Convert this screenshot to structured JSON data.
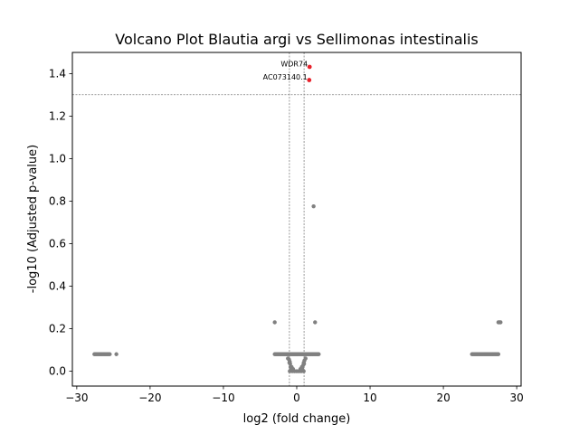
{
  "chart_data": {
    "type": "scatter",
    "title": "Volcano Plot Blautia argi vs Sellimonas intestinalis",
    "xlabel": "log2 (fold change)",
    "ylabel": "-log10 (Adjusted p-value)",
    "xlim": [
      -30.6,
      30.6
    ],
    "ylim": [
      -0.07,
      1.5
    ],
    "xticks": [
      -30,
      -20,
      -10,
      0,
      10,
      20,
      30
    ],
    "yticks": [
      0.0,
      0.2,
      0.4,
      0.6,
      0.8,
      1.0,
      1.2,
      1.4
    ],
    "thresholds": {
      "hline": 1.301,
      "vlines": [
        -1,
        1
      ]
    },
    "grid": false,
    "colors": {
      "significant": "#e8202a",
      "not_significant": "#808080",
      "threshold": "#808080"
    },
    "significant_points": [
      {
        "x": 1.75,
        "y": 1.432,
        "label": "WDR74"
      },
      {
        "x": 1.7,
        "y": 1.37,
        "label": "AC073140.1"
      }
    ],
    "nonsignificant_points": [
      [
        2.3,
        0.776
      ],
      [
        -3.0,
        0.23
      ],
      [
        2.5,
        0.23
      ],
      [
        27.5,
        0.23
      ],
      [
        27.8,
        0.23
      ],
      [
        27.65,
        0.23
      ],
      [
        -24.6,
        0.08
      ],
      [
        -1.2,
        0.06
      ],
      [
        -1.05,
        0.055
      ],
      [
        -0.95,
        0.045
      ],
      [
        -0.9,
        0.035
      ],
      [
        -0.85,
        0.02
      ],
      [
        -0.8,
        0.01
      ],
      [
        1.2,
        0.06
      ],
      [
        1.05,
        0.05
      ],
      [
        0.95,
        0.04
      ],
      [
        0.9,
        0.03
      ],
      [
        0.8,
        0.02
      ],
      [
        0.75,
        0.01
      ],
      [
        -0.95,
        0.0
      ],
      [
        -0.6,
        0.0
      ],
      [
        -0.3,
        0.0
      ],
      [
        0.0,
        0.0
      ],
      [
        0.3,
        0.0
      ],
      [
        0.6,
        0.0
      ],
      [
        0.95,
        0.0
      ],
      [
        -0.5,
        0.01
      ],
      [
        0.5,
        0.01
      ],
      [
        1.0,
        0.035
      ],
      [
        -1.0,
        0.04
      ],
      [
        0.7,
        0.02
      ],
      [
        -0.7,
        0.02
      ]
    ],
    "nonsignificant_runs": [
      {
        "x_start": -27.6,
        "x_end": -25.4,
        "y": 0.08,
        "step": 0.15
      },
      {
        "x_start": -3.0,
        "x_end": 3.0,
        "y": 0.08,
        "step": 0.12
      },
      {
        "x_start": 23.9,
        "x_end": 27.6,
        "y": 0.08,
        "step": 0.15
      }
    ]
  }
}
